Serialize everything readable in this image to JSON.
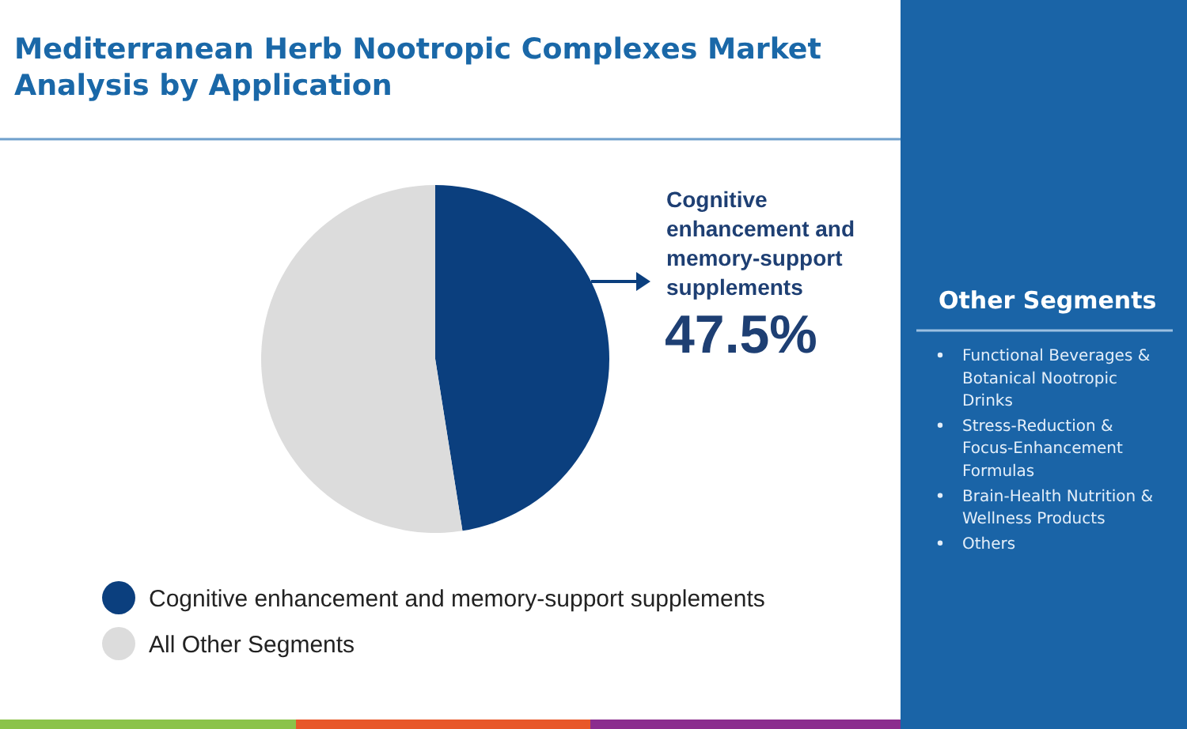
{
  "chart_data": {
    "type": "pie",
    "title": "Mediterranean Herb Nootropic Complexes Market Analysis by Application",
    "categories": [
      "Cognitive enhancement and memory-support supplements",
      "All Other Segments"
    ],
    "values": [
      47.5,
      52.5
    ],
    "colors": [
      "#0b3f7e",
      "#dcdcdc"
    ],
    "value_labels": [
      "47.5%",
      null
    ],
    "legend": "bottom",
    "annotations": [
      "Other Segments",
      "Functional Beverages & Botanical Nootropic Drinks",
      "Stress-Reduction & Focus-Enhancement Formulas",
      "Brain-Health Nutrition & Wellness Products",
      "Others"
    ]
  }
}
